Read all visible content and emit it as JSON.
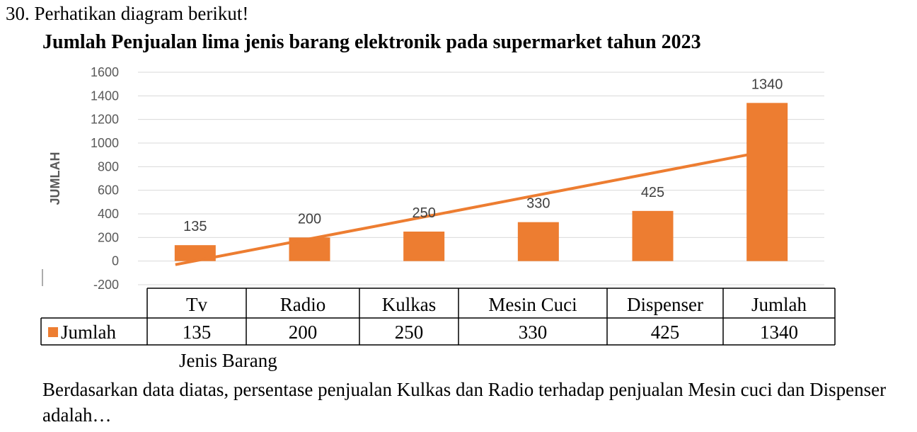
{
  "question": {
    "number_line": "30. Perhatikan diagram berikut!",
    "text": "Berdasarkan data diatas, persentase penjualan Kulkas dan Radio terhadap penjualan Mesin cuci dan Dispenser adalah…"
  },
  "chart_data": {
    "type": "bar",
    "title": "Jumlah Penjualan lima jenis barang elektronik pada supermarket tahun 2023",
    "xlabel": "Jenis Barang",
    "ylabel": "JUMLAH",
    "categories": [
      "Tv",
      "Radio",
      "Kulkas",
      "Mesin Cuci",
      "Dispenser",
      "Jumlah"
    ],
    "series": [
      {
        "name": "Jumlah",
        "values": [
          135,
          200,
          250,
          330,
          425,
          1340
        ],
        "color": "#ed7d31"
      }
    ],
    "trendline": {
      "from": -30,
      "to": 900,
      "color": "#ed7d31"
    },
    "ylim": [
      -200,
      1600
    ],
    "yticks": [
      -200,
      0,
      200,
      400,
      600,
      800,
      1000,
      1200,
      1400,
      1600
    ],
    "grid": true,
    "data_table": true
  }
}
